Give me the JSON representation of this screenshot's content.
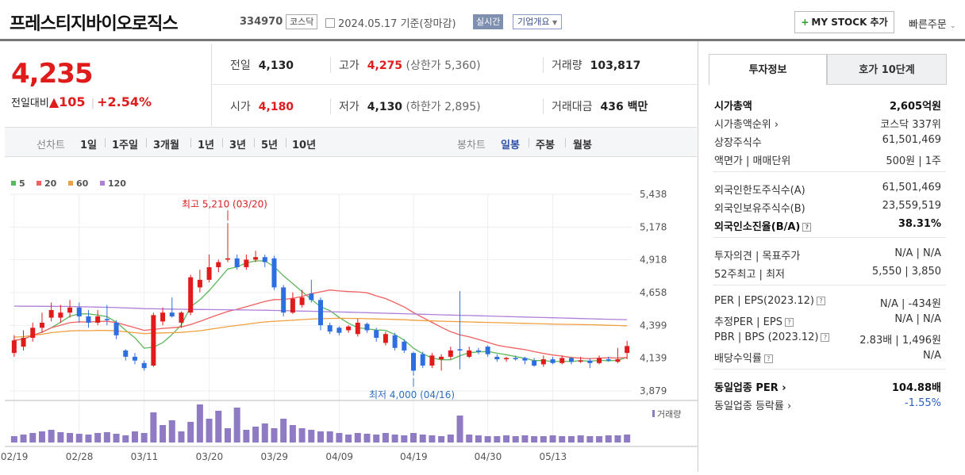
{
  "header": {
    "company": "프레스티지바이오로직스",
    "code": "334970",
    "market_badge": "코스닥",
    "date": "2024.05.17",
    "date_suffix": "기준(장마감)",
    "realtime_label": "실시간",
    "corp_info_label": "기업개요",
    "mystock_label": "MY STOCK 추가",
    "quick_order_label": "빠른주문"
  },
  "quote": {
    "price": "4,235",
    "change_label": "전일대비",
    "change_arrow": "▲",
    "change": "105",
    "change_pct": "+2.54%",
    "prev_label": "전일",
    "prev": "4,130",
    "high_label": "고가",
    "high": "4,275",
    "upper_limit": "(상한가 5,360)",
    "volume_label": "거래량",
    "volume": "103,817",
    "open_label": "시가",
    "open": "4,180",
    "low_label": "저가",
    "low": "4,130",
    "lower_limit": "(하한가 2,895)",
    "amount_label": "거래대금",
    "amount": "436 백만"
  },
  "periods": {
    "line_label": "선차트",
    "line_items": [
      "1일",
      "1주일",
      "3개월",
      "1년",
      "3년",
      "5년",
      "10년"
    ],
    "candle_label": "봉차트",
    "candle_items": [
      "일봉",
      "주봉",
      "월봉"
    ],
    "selected": "일봉"
  },
  "colors": {
    "up": "#e01b1b",
    "down": "#2d6fe0",
    "ma5": "#5cb85c",
    "ma20": "#f06060",
    "ma60": "#f0a040",
    "ma120": "#b07fd8",
    "volume": "#8f7bc4"
  },
  "chart_data": {
    "type": "candlestick",
    "legend": [
      "5",
      "20",
      "60",
      "120"
    ],
    "y_ticks": [
      "5,438",
      "5,178",
      "4,918",
      "4,658",
      "4,399",
      "4,139",
      "3,879"
    ],
    "ylim": [
      3879,
      5438
    ],
    "x_ticks": [
      "02/19",
      "02/28",
      "03/11",
      "03/20",
      "03/29",
      "04/09",
      "04/19",
      "04/30",
      "05/13"
    ],
    "annotations": {
      "high": "최고 5,210 (03/20)",
      "low": "최저 4,000 (04/16)"
    },
    "volume_label": "거래량",
    "candles": [
      {
        "o": 4180,
        "c": 4280,
        "h": 4320,
        "l": 4150
      },
      {
        "o": 4230,
        "c": 4300,
        "h": 4360,
        "l": 4200
      },
      {
        "o": 4300,
        "c": 4380,
        "h": 4420,
        "l": 4270
      },
      {
        "o": 4380,
        "c": 4420,
        "h": 4500,
        "l": 4340
      },
      {
        "o": 4460,
        "c": 4520,
        "h": 4580,
        "l": 4430
      },
      {
        "o": 4460,
        "c": 4500,
        "h": 4560,
        "l": 4420
      },
      {
        "o": 4500,
        "c": 4540,
        "h": 4600,
        "l": 4460
      },
      {
        "o": 4540,
        "c": 4470,
        "h": 4580,
        "l": 4420
      },
      {
        "o": 4470,
        "c": 4420,
        "h": 4520,
        "l": 4380
      },
      {
        "o": 4420,
        "c": 4470,
        "h": 4520,
        "l": 4400
      },
      {
        "o": 4450,
        "c": 4440,
        "h": 4560,
        "l": 4400
      },
      {
        "o": 4420,
        "c": 4320,
        "h": 4440,
        "l": 4290
      },
      {
        "o": 4200,
        "c": 4150,
        "h": 4210,
        "l": 4120
      },
      {
        "o": 4150,
        "c": 4120,
        "h": 4180,
        "l": 4090
      },
      {
        "o": 4100,
        "c": 4060,
        "h": 4120,
        "l": 4040
      },
      {
        "o": 4080,
        "c": 4480,
        "h": 4500,
        "l": 4070
      },
      {
        "o": 4430,
        "c": 4500,
        "h": 4540,
        "l": 4400
      },
      {
        "o": 4500,
        "c": 4470,
        "h": 4620,
        "l": 4460
      },
      {
        "o": 4420,
        "c": 4500,
        "h": 4510,
        "l": 4380
      },
      {
        "o": 4500,
        "c": 4780,
        "h": 4800,
        "l": 4480
      },
      {
        "o": 4700,
        "c": 4760,
        "h": 4840,
        "l": 4660
      },
      {
        "o": 4760,
        "c": 4860,
        "h": 4960,
        "l": 4740
      },
      {
        "o": 4860,
        "c": 4900,
        "h": 4920,
        "l": 4820
      },
      {
        "o": 4920,
        "c": 4930,
        "h": 5210,
        "l": 4900
      },
      {
        "o": 4930,
        "c": 4860,
        "h": 4960,
        "l": 4840
      },
      {
        "o": 4860,
        "c": 4920,
        "h": 4960,
        "l": 4840
      },
      {
        "o": 4920,
        "c": 4940,
        "h": 4990,
        "l": 4900
      },
      {
        "o": 4940,
        "c": 4900,
        "h": 4960,
        "l": 4860
      },
      {
        "o": 4930,
        "c": 4700,
        "h": 4950,
        "l": 4680
      },
      {
        "o": 4700,
        "c": 4500,
        "h": 4720,
        "l": 4470
      },
      {
        "o": 4500,
        "c": 4610,
        "h": 4660,
        "l": 4490
      },
      {
        "o": 4560,
        "c": 4620,
        "h": 4680,
        "l": 4540
      },
      {
        "o": 4650,
        "c": 4600,
        "h": 4760,
        "l": 4580
      },
      {
        "o": 4600,
        "c": 4400,
        "h": 4620,
        "l": 4360
      },
      {
        "o": 4400,
        "c": 4350,
        "h": 4420,
        "l": 4330
      },
      {
        "o": 4380,
        "c": 4340,
        "h": 4390,
        "l": 4320
      },
      {
        "o": 4360,
        "c": 4390,
        "h": 4400,
        "l": 4340
      },
      {
        "o": 4330,
        "c": 4420,
        "h": 4450,
        "l": 4310
      },
      {
        "o": 4410,
        "c": 4360,
        "h": 4420,
        "l": 4340
      },
      {
        "o": 4360,
        "c": 4300,
        "h": 4380,
        "l": 4270
      },
      {
        "o": 4260,
        "c": 4330,
        "h": 4350,
        "l": 4240
      },
      {
        "o": 4320,
        "c": 4220,
        "h": 4340,
        "l": 4200
      },
      {
        "o": 4270,
        "c": 4200,
        "h": 4290,
        "l": 4180
      },
      {
        "o": 4180,
        "c": 4040,
        "h": 4190,
        "l": 4000
      },
      {
        "o": 4170,
        "c": 4080,
        "h": 4190,
        "l": 4060
      },
      {
        "o": 4080,
        "c": 4160,
        "h": 4180,
        "l": 4060
      },
      {
        "o": 4130,
        "c": 4150,
        "h": 4170,
        "l": 4040
      },
      {
        "o": 4150,
        "c": 4200,
        "h": 4230,
        "l": 4130
      },
      {
        "o": 4210,
        "c": 4200,
        "h": 4670,
        "l": 4050
      },
      {
        "o": 4150,
        "c": 4200,
        "h": 4230,
        "l": 4140
      },
      {
        "o": 4200,
        "c": 4190,
        "h": 4220,
        "l": 4170
      },
      {
        "o": 4230,
        "c": 4170,
        "h": 4240,
        "l": 4150
      },
      {
        "o": 4150,
        "c": 4130,
        "h": 4170,
        "l": 4110
      },
      {
        "o": 4130,
        "c": 4140,
        "h": 4150,
        "l": 4110
      },
      {
        "o": 4140,
        "c": 4130,
        "h": 4160,
        "l": 4120
      },
      {
        "o": 4140,
        "c": 4120,
        "h": 4150,
        "l": 4090
      },
      {
        "o": 4120,
        "c": 4080,
        "h": 4140,
        "l": 4070
      },
      {
        "o": 4090,
        "c": 4130,
        "h": 4160,
        "l": 4070
      },
      {
        "o": 4130,
        "c": 4100,
        "h": 4150,
        "l": 4090
      },
      {
        "o": 4100,
        "c": 4140,
        "h": 4160,
        "l": 4090
      },
      {
        "o": 4140,
        "c": 4110,
        "h": 4150,
        "l": 4090
      },
      {
        "o": 4120,
        "c": 4120,
        "h": 4150,
        "l": 4100
      },
      {
        "o": 4120,
        "c": 4100,
        "h": 4140,
        "l": 4060
      },
      {
        "o": 4100,
        "c": 4140,
        "h": 4160,
        "l": 4090
      },
      {
        "o": 4130,
        "c": 4120,
        "h": 4150,
        "l": 4110
      },
      {
        "o": 4110,
        "c": 4130,
        "h": 4220,
        "l": 4100
      },
      {
        "o": 4180,
        "c": 4235,
        "h": 4275,
        "l": 4130
      }
    ],
    "volumes": [
      8,
      10,
      12,
      14,
      16,
      13,
      12,
      11,
      10,
      12,
      13,
      11,
      9,
      14,
      12,
      38,
      22,
      28,
      14,
      26,
      48,
      30,
      40,
      18,
      44,
      16,
      20,
      24,
      18,
      30,
      22,
      18,
      16,
      14,
      14,
      12,
      10,
      12,
      11,
      10,
      12,
      10,
      9,
      12,
      10,
      9,
      8,
      10,
      34,
      10,
      9,
      8,
      8,
      9,
      8,
      9,
      8,
      8,
      9,
      8,
      8,
      9,
      8,
      8,
      9,
      9,
      10
    ]
  },
  "tabs": {
    "on": "투자정보",
    "off": "호가 10단계"
  },
  "invest": {
    "g1": [
      {
        "k": "시가총액",
        "v": "2,605억원",
        "bold": true
      },
      {
        "k": "시가총액순위 ›",
        "v": "코스닥 337위"
      },
      {
        "k": "상장주식수",
        "v": "61,501,469"
      },
      {
        "k": "액면가 | 매매단위",
        "v": "500원 | 1주"
      }
    ],
    "g2": [
      {
        "k": "외국인한도주식수(A)",
        "v": "61,501,469"
      },
      {
        "k": "외국인보유주식수(B)",
        "v": "23,559,519"
      },
      {
        "k": "외국인소진율(B/A)",
        "v": "38.31%",
        "bold": true
      }
    ],
    "g3": [
      {
        "k": "투자의견 | 목표주가",
        "v": "N/A | N/A"
      },
      {
        "k": "52주최고 | 최저",
        "v": "5,550 | 3,850"
      }
    ],
    "g4": [
      {
        "k": "PER | EPS(2023.12)",
        "v": "N/A | -434원"
      },
      {
        "k": "추정PER | EPS",
        "v": "N/A | N/A"
      },
      {
        "k": "PBR | BPS (2023.12)",
        "v": "2.83배 | 1,496원"
      },
      {
        "k": "배당수익률",
        "v": "N/A"
      }
    ],
    "g5": [
      {
        "k": "동일업종 PER ›",
        "v": "104.88배",
        "bold": true
      },
      {
        "k": "동일업종 등락률 ›",
        "v": "-1.55%",
        "blue": true
      }
    ]
  }
}
